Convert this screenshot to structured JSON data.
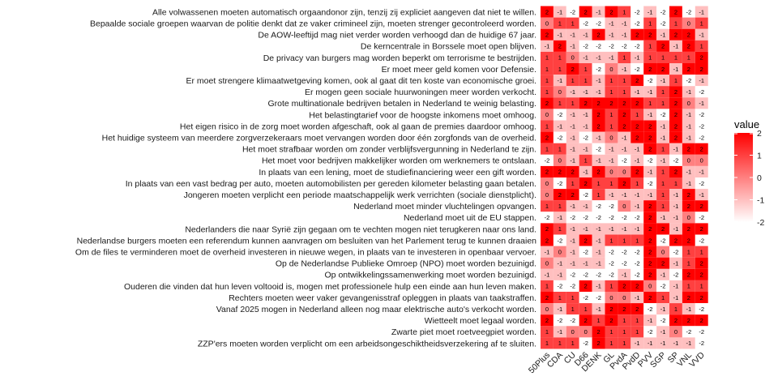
{
  "chart_data": {
    "type": "heatmap",
    "legend": {
      "title": "value",
      "ticks": [
        2,
        1,
        0,
        -1,
        -2
      ],
      "range": [
        -2,
        2
      ],
      "low_color": "#ffffff",
      "high_color": "#ff0000",
      "position": "right"
    },
    "columns": [
      "50Plus",
      "CDA",
      "CU",
      "D66",
      "DENK",
      "GL",
      "PvdA",
      "PvdD",
      "PVV",
      "SGP",
      "SP",
      "VNL",
      "VVD"
    ],
    "rows": [
      "Alle volwassenen moeten automatisch orgaandonor zijn, tenzij zij expliciet aangeven dat niet te willen.",
      "Bepaalde sociale groepen waarvan de politie denkt dat ze vaker crimineel zijn, moeten strenger gecontroleerd worden.",
      "De AOW-leeftijd mag niet verder worden verhoogd dan de huidige 67 jaar.",
      "De kerncentrale in Borssele moet open blijven.",
      "De privacy van burgers mag worden beperkt om terrorisme te bestrijden.",
      "Er moet meer geld komen voor Defensie.",
      "Er moet strengere klimaatwetgeving komen, ook al gaat dit ten koste van economische groei.",
      "Er mogen geen sociale huurwoningen meer worden verkocht.",
      "Grote multinationale bedrijven betalen in Nederland te weinig belasting.",
      "Het belastingtarief voor de hoogste inkomens moet omhoog.",
      "Het eigen risico in de zorg moet worden afgeschaft, ook al gaan de premies daardoor omhoog.",
      "Het huidige systeem van meerdere zorgverzekeraars moet vervangen worden door één zorgfonds van de overheid.",
      "Het moet strafbaar worden om zonder verblijfsvergunning in Nederland te zijn.",
      "Het moet voor bedrijven makkelijker worden om werknemers te ontslaan.",
      "In plaats van een lening, moet de studiefinanciering weer een gift worden.",
      "In plaats van een vast bedrag per auto, moeten automobilisten per gereden kilometer belasting gaan betalen.",
      "Jongeren moeten verplicht een periode maatschappelijk werk verrichten (sociale dienstplicht).",
      "Nederland moet minder vluchtelingen opvangen.",
      "Nederland moet uit de EU stappen.",
      "Nederlanders die naar Syrië zijn gegaan om te vechten mogen niet terugkeren naar ons land.",
      "Nederlandse burgers moeten een referendum kunnen aanvragen om besluiten van het Parlement terug te kunnen draaien",
      "Om de files te verminderen moet de overheid investeren in nieuwe wegen, in plaats van te investeren in openbaar vervoer.",
      "Op de Nederlandse Publieke Omroep (NPO) moet worden bezuinigd.",
      "Op ontwikkelingssamenwerking moet worden bezuinigd.",
      "Ouderen die vinden dat hun leven voltooid is, mogen met professionele hulp een einde aan hun leven maken.",
      "Rechters moeten weer vaker gevangenisstraf opleggen in plaats van taakstraffen.",
      "Vanaf 2025 mogen in Nederland alleen nog maar elektrische auto's verkocht worden.",
      "Wietteelt moet legaal worden.",
      "Zwarte piet moet roetveegpiet worden.",
      "ZZP'ers moeten worden verplicht om een arbeidsongeschiktheidsverzekering af te sluiten."
    ],
    "values": [
      [
        2,
        -1,
        -2,
        2,
        -1,
        2,
        1,
        -2,
        -1,
        -2,
        2,
        -2,
        -1
      ],
      [
        0,
        1,
        1,
        -2,
        -2,
        -1,
        -1,
        -2,
        1,
        -2,
        1,
        0,
        1
      ],
      [
        2,
        -1,
        -1,
        -1,
        2,
        -1,
        -1,
        2,
        2,
        -1,
        2,
        2,
        -1
      ],
      [
        -1,
        2,
        -1,
        -2,
        -2,
        -2,
        -2,
        -2,
        1,
        2,
        -1,
        2,
        1
      ],
      [
        1,
        1,
        0,
        -1,
        -1,
        -1,
        1,
        -1,
        1,
        1,
        1,
        1,
        2
      ],
      [
        1,
        1,
        2,
        1,
        -2,
        0,
        -1,
        -2,
        2,
        2,
        -1,
        2,
        2
      ],
      [
        1,
        -1,
        1,
        1,
        -1,
        1,
        1,
        2,
        -2,
        -1,
        1,
        -2,
        -1
      ],
      [
        1,
        0,
        -1,
        -1,
        -1,
        1,
        1,
        -1,
        -1,
        1,
        2,
        -1,
        -2
      ],
      [
        2,
        1,
        1,
        2,
        2,
        2,
        2,
        2,
        1,
        1,
        2,
        0,
        -1
      ],
      [
        0,
        -2,
        -1,
        -1,
        2,
        1,
        2,
        1,
        -1,
        -2,
        2,
        -1,
        -2
      ],
      [
        1,
        -1,
        -1,
        -1,
        2,
        1,
        2,
        2,
        2,
        -1,
        2,
        -1,
        -2
      ],
      [
        2,
        -2,
        -1,
        -2,
        -1,
        0,
        -1,
        2,
        2,
        -1,
        2,
        -1,
        -2
      ],
      [
        1,
        1,
        -1,
        -1,
        -2,
        -1,
        -1,
        -1,
        2,
        1,
        -1,
        2,
        2
      ],
      [
        -2,
        0,
        -1,
        1,
        -1,
        -1,
        -2,
        -1,
        -2,
        -1,
        -2,
        0,
        0
      ],
      [
        2,
        2,
        2,
        -1,
        2,
        0,
        0,
        2,
        -1,
        1,
        2,
        -1,
        -1
      ],
      [
        0,
        -2,
        1,
        2,
        1,
        1,
        2,
        1,
        -2,
        1,
        1,
        -1,
        -2
      ],
      [
        0,
        2,
        2,
        -2,
        1,
        -1,
        -1,
        -1,
        -1,
        1,
        -1,
        2,
        -1
      ],
      [
        1,
        1,
        -1,
        -1,
        -2,
        -2,
        0,
        -1,
        2,
        1,
        -1,
        2,
        2
      ],
      [
        -2,
        -1,
        -2,
        -2,
        -2,
        -2,
        -2,
        -2,
        2,
        -1,
        -1,
        0,
        -2
      ],
      [
        2,
        1,
        -1,
        -1,
        -1,
        -1,
        -1,
        -1,
        2,
        2,
        -1,
        2,
        2
      ],
      [
        2,
        -2,
        -1,
        2,
        -1,
        1,
        1,
        1,
        2,
        -2,
        2,
        2,
        -2
      ],
      [
        -1,
        0,
        -1,
        -2,
        -1,
        -2,
        -2,
        -2,
        2,
        0,
        -2,
        1,
        1
      ],
      [
        0,
        -1,
        -1,
        -1,
        -1,
        -2,
        -2,
        -2,
        2,
        2,
        -1,
        1,
        2
      ],
      [
        -1,
        -1,
        -2,
        -2,
        -2,
        -2,
        -1,
        -2,
        2,
        -1,
        -2,
        2,
        2
      ],
      [
        1,
        -2,
        -2,
        2,
        -1,
        1,
        2,
        2,
        0,
        -2,
        -1,
        1,
        1
      ],
      [
        2,
        1,
        1,
        -2,
        -2,
        0,
        0,
        -1,
        2,
        1,
        -1,
        2,
        2
      ],
      [
        0,
        -1,
        1,
        1,
        -1,
        2,
        2,
        2,
        -2,
        -1,
        1,
        -1,
        -2
      ],
      [
        2,
        -2,
        -2,
        2,
        1,
        2,
        1,
        1,
        -1,
        -2,
        2,
        2,
        2
      ],
      [
        1,
        -1,
        0,
        0,
        2,
        1,
        1,
        1,
        -2,
        -1,
        0,
        -2,
        -2
      ],
      [
        1,
        1,
        1,
        -2,
        2,
        1,
        1,
        -1,
        -1,
        -1,
        -1,
        -1,
        -2
      ]
    ]
  }
}
